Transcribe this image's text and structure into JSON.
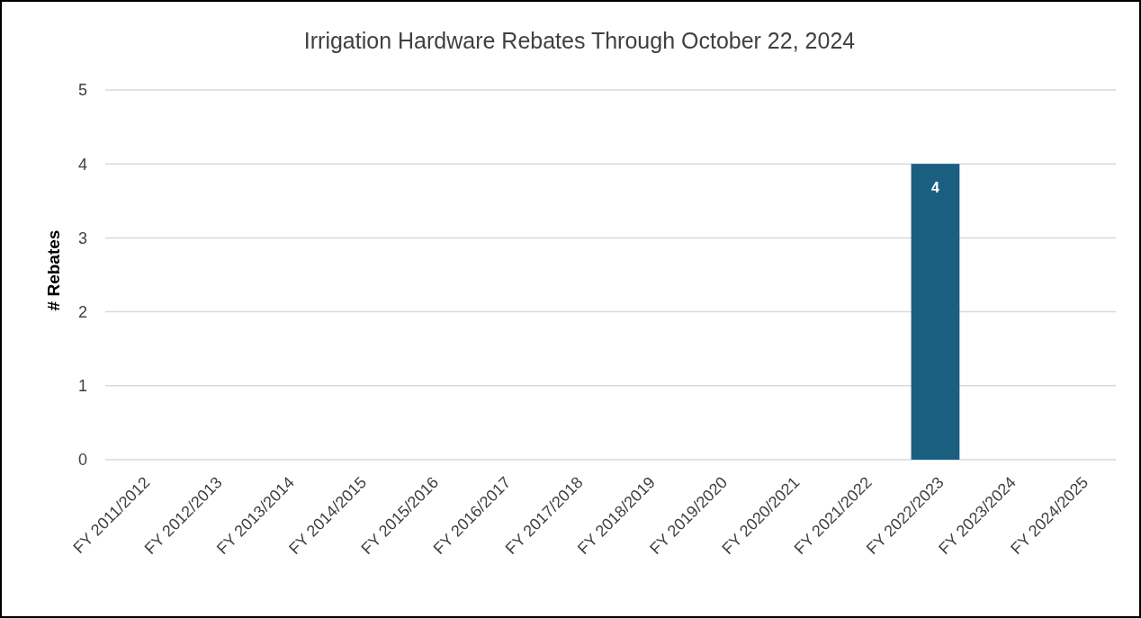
{
  "chart_data": {
    "type": "bar",
    "title": "Irrigation Hardware Rebates Through October 22, 2024",
    "ylabel": "# Rebates",
    "categories": [
      "FY 2011/2012",
      "FY 2012/2013",
      "FY 2013/2014",
      "FY 2014/2015",
      "FY 2015/2016",
      "FY 2016/2017",
      "FY 2017/2018",
      "FY 2018/2019",
      "FY 2019/2020",
      "FY 2020/2021",
      "FY 2021/2022",
      "FY 2022/2023",
      "FY 2023/2024",
      "FY 2024/2025"
    ],
    "values": [
      0,
      0,
      0,
      0,
      0,
      0,
      0,
      0,
      0,
      0,
      0,
      4,
      0,
      0
    ],
    "value_labels": [
      null,
      null,
      null,
      null,
      null,
      null,
      null,
      null,
      null,
      null,
      null,
      "4",
      null,
      null
    ],
    "color": "#1a5e80",
    "ylim": [
      0,
      5
    ],
    "yticks": [
      0,
      1,
      2,
      3,
      4,
      5
    ],
    "grid": "y"
  }
}
